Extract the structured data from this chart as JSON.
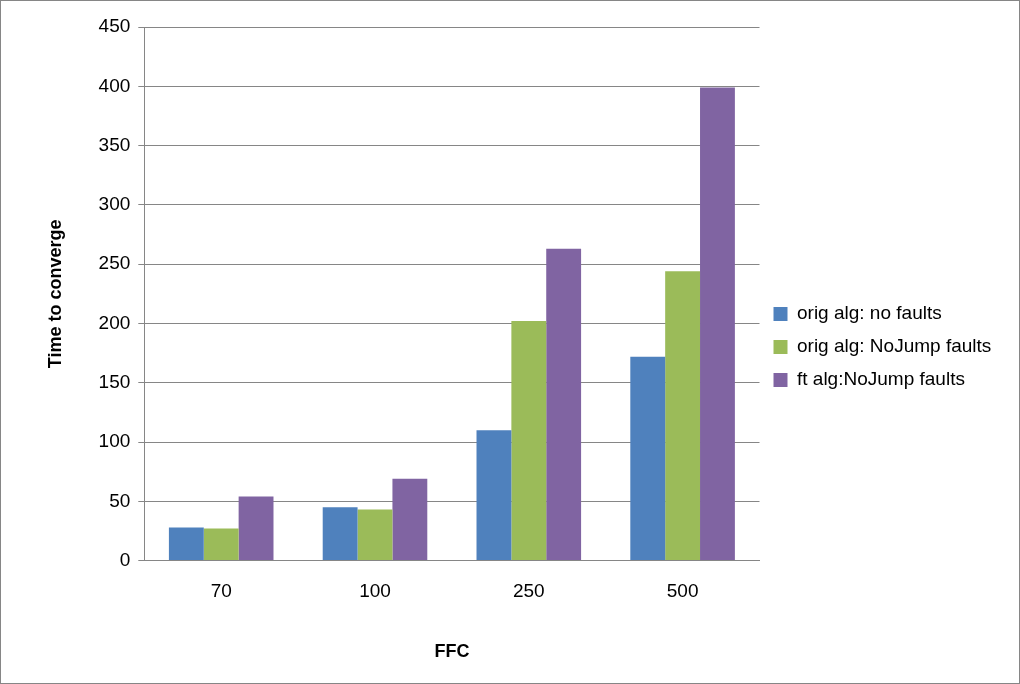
{
  "chart_data": {
    "type": "bar",
    "xlabel": "FFC",
    "ylabel": "Time to converge",
    "categories": [
      "70",
      "100",
      "250",
      "500"
    ],
    "series": [
      {
        "name": "orig alg: no faults",
        "color": "#4f81bd",
        "values": [
          28,
          45,
          110,
          172
        ]
      },
      {
        "name": "orig alg: NoJump faults",
        "color": "#9bbb59",
        "values": [
          27,
          43,
          202,
          244
        ]
      },
      {
        "name": "ft alg:NoJump faults",
        "color": "#8064a2",
        "values": [
          54,
          69,
          263,
          399
        ]
      }
    ],
    "ylim": [
      0,
      450
    ],
    "yticks": [
      0,
      50,
      100,
      150,
      200,
      250,
      300,
      350,
      400,
      450
    ],
    "grid": "y",
    "legend": "right"
  }
}
